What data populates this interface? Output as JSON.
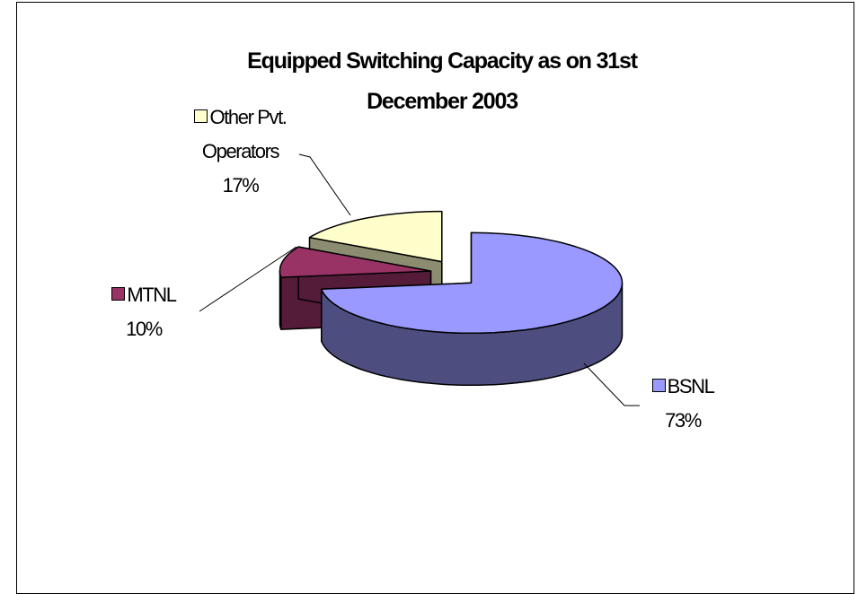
{
  "chart_data": {
    "type": "pie",
    "title": "Equipped Switching Capacity as on 31st December 2003",
    "categories": [
      "BSNL",
      "MTNL",
      "Other Pvt. Operators"
    ],
    "values": [
      73,
      10,
      17
    ],
    "value_labels": [
      "73%",
      "10%",
      "17%"
    ],
    "colors": [
      "#9999ff",
      "#993366",
      "#ffffcc"
    ]
  }
}
